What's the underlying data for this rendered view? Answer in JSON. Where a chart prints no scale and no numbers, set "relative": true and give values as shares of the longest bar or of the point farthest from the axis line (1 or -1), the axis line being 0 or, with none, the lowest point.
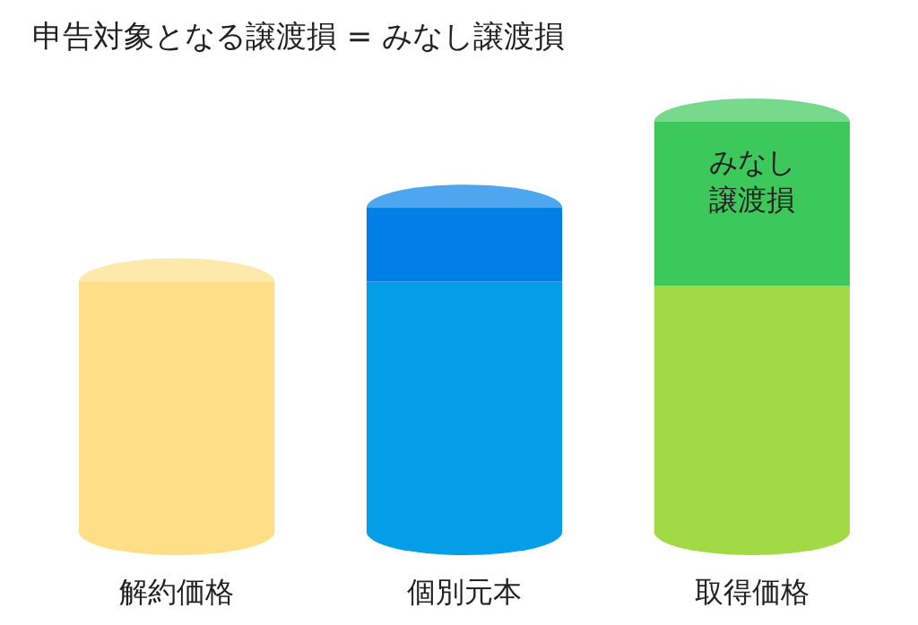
{
  "chart_data": {
    "type": "bar",
    "title": "申告対象となる譲渡損 = みなし譲渡損",
    "categories": [
      "解約価格",
      "個別元本",
      "取得価格"
    ],
    "stacked": true,
    "relative": true,
    "series": [
      {
        "colors": [
          "#fede86",
          "#039de8",
          "#a1da45"
        ],
        "values": [
          0.61,
          0.61,
          0.6
        ]
      },
      {
        "colors": [
          null,
          "#0080e6",
          "#3cc85a"
        ],
        "values": [
          null,
          0.18,
          0.4
        ]
      }
    ],
    "annotations": [
      "みなし譲渡損"
    ]
  }
}
